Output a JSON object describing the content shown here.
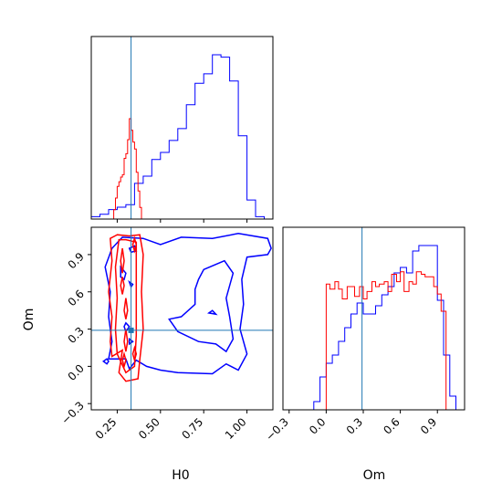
{
  "chart_data": {
    "type": "corner",
    "parameters": [
      "H0",
      "Om"
    ],
    "truth": {
      "H0": 0.33,
      "Om": 0.29
    },
    "colors": {
      "red": "#ff0000",
      "blue": "#0000ff",
      "truth_line": "#1f77b4"
    },
    "axes": {
      "H0": {
        "label": "H0",
        "range": [
          0.1,
          1.15
        ],
        "ticks": [
          0.25,
          0.5,
          0.75,
          1.0
        ],
        "tick_labels": [
          "0.25",
          "0.50",
          "0.75",
          "1.00"
        ]
      },
      "Om": {
        "label": "Om",
        "range": [
          -0.35,
          1.12
        ],
        "ticks": [
          -0.3,
          0.0,
          0.3,
          0.6,
          0.9
        ],
        "tick_labels": [
          "−0.3",
          "0.0",
          "0.3",
          "0.6",
          "0.9"
        ]
      }
    },
    "hist_H0": {
      "red": {
        "edges": [
          0.1,
          0.23,
          0.24,
          0.25,
          0.26,
          0.27,
          0.28,
          0.29,
          0.3,
          0.31,
          0.32,
          0.33,
          0.34,
          0.35,
          0.36,
          0.37,
          0.38,
          0.39,
          1.15
        ],
        "values": [
          0,
          4,
          9,
          14,
          16,
          18,
          19,
          26,
          28,
          34,
          43,
          38,
          33,
          30,
          20,
          12,
          5,
          0
        ]
      },
      "blue": {
        "edges": [
          0.1,
          0.15,
          0.2,
          0.25,
          0.3,
          0.35,
          0.4,
          0.45,
          0.5,
          0.55,
          0.6,
          0.65,
          0.7,
          0.75,
          0.8,
          0.85,
          0.9,
          0.95,
          1.0,
          1.05,
          1.1,
          1.15
        ],
        "values": [
          1,
          2,
          4,
          5,
          6,
          15,
          18,
          25,
          28,
          33,
          38,
          48,
          57,
          61,
          69,
          68,
          58,
          35,
          8,
          1,
          0
        ]
      }
    },
    "hist_Om": {
      "red": {
        "edges": [
          -0.35,
          -0.05,
          0.0,
          0.03,
          0.07,
          0.1,
          0.13,
          0.17,
          0.2,
          0.23,
          0.27,
          0.3,
          0.33,
          0.37,
          0.4,
          0.43,
          0.47,
          0.5,
          0.53,
          0.57,
          0.6,
          0.63,
          0.67,
          0.7,
          0.73,
          0.77,
          0.8,
          0.83,
          0.87,
          0.9,
          0.93,
          0.97,
          1.0,
          1.12
        ],
        "values": [
          0,
          0,
          51,
          49,
          52,
          49,
          45,
          50,
          50,
          46,
          50,
          45,
          48,
          52,
          50,
          51,
          52,
          48,
          55,
          52,
          56,
          48,
          52,
          51,
          56,
          55,
          54,
          54,
          50,
          47,
          40,
          0,
          0
        ]
      },
      "blue": {
        "edges": [
          -0.35,
          -0.1,
          -0.05,
          0.0,
          0.05,
          0.1,
          0.15,
          0.2,
          0.25,
          0.3,
          0.35,
          0.4,
          0.45,
          0.5,
          0.55,
          0.6,
          0.65,
          0.7,
          0.75,
          0.8,
          0.85,
          0.9,
          0.95,
          1.0,
          1.05,
          1.12
        ],
        "values": [
          0,
          3,
          12,
          17,
          20,
          25,
          30,
          35,
          39,
          35,
          35,
          38,
          42,
          45,
          50,
          52,
          50,
          58,
          60,
          60,
          60,
          40,
          20,
          5,
          0
        ]
      }
    },
    "contours_red": [
      [
        [
          0.28,
          0.13
        ],
        [
          0.22,
          0.08
        ],
        [
          0.21,
          0.2
        ],
        [
          0.22,
          0.4
        ],
        [
          0.2,
          0.6
        ],
        [
          0.22,
          0.85
        ],
        [
          0.21,
          1.03
        ],
        [
          0.25,
          1.06
        ],
        [
          0.32,
          1.05
        ],
        [
          0.38,
          1.06
        ],
        [
          0.4,
          0.9
        ],
        [
          0.39,
          0.6
        ],
        [
          0.4,
          0.3
        ],
        [
          0.38,
          0.05
        ],
        [
          0.37,
          -0.1
        ],
        [
          0.3,
          -0.12
        ],
        [
          0.26,
          -0.05
        ],
        [
          0.28,
          0.13
        ]
      ],
      [
        [
          0.25,
          0.1
        ],
        [
          0.24,
          0.3
        ],
        [
          0.25,
          0.55
        ],
        [
          0.24,
          0.8
        ],
        [
          0.26,
          1.02
        ],
        [
          0.3,
          1.02
        ],
        [
          0.36,
          1.0
        ],
        [
          0.36,
          0.75
        ],
        [
          0.36,
          0.5
        ],
        [
          0.36,
          0.25
        ],
        [
          0.35,
          0.0
        ],
        [
          0.3,
          -0.05
        ],
        [
          0.25,
          0.1
        ]
      ],
      [
        [
          0.27,
          0.85
        ],
        [
          0.28,
          0.95
        ],
        [
          0.29,
          0.85
        ],
        [
          0.28,
          0.75
        ],
        [
          0.27,
          0.85
        ]
      ],
      [
        [
          0.27,
          0.65
        ],
        [
          0.28,
          0.72
        ],
        [
          0.29,
          0.65
        ],
        [
          0.28,
          0.58
        ],
        [
          0.27,
          0.65
        ]
      ],
      [
        [
          0.29,
          0.45
        ],
        [
          0.3,
          0.55
        ],
        [
          0.31,
          0.45
        ],
        [
          0.3,
          0.38
        ],
        [
          0.29,
          0.45
        ]
      ],
      [
        [
          0.29,
          0.2
        ],
        [
          0.3,
          0.3
        ],
        [
          0.31,
          0.2
        ],
        [
          0.3,
          0.12
        ],
        [
          0.29,
          0.2
        ]
      ],
      [
        [
          0.34,
          0.98
        ],
        [
          0.35,
          1.03
        ],
        [
          0.36,
          0.98
        ],
        [
          0.35,
          0.93
        ],
        [
          0.34,
          0.98
        ]
      ],
      [
        [
          0.28,
          0.05
        ],
        [
          0.29,
          0.1
        ],
        [
          0.3,
          0.05
        ],
        [
          0.29,
          0.0
        ],
        [
          0.28,
          0.05
        ]
      ],
      [
        [
          0.34,
          0.1
        ],
        [
          0.35,
          0.15
        ],
        [
          0.36,
          0.1
        ],
        [
          0.35,
          0.05
        ],
        [
          0.34,
          0.1
        ]
      ]
    ],
    "contours_blue": [
      [
        [
          0.28,
          1.04
        ],
        [
          0.4,
          1.03
        ],
        [
          0.5,
          0.98
        ],
        [
          0.62,
          1.04
        ],
        [
          0.8,
          1.03
        ],
        [
          0.95,
          1.07
        ],
        [
          1.12,
          1.03
        ],
        [
          1.14,
          0.95
        ],
        [
          1.12,
          0.9
        ],
        [
          1.0,
          0.88
        ],
        [
          0.97,
          0.7
        ],
        [
          0.98,
          0.5
        ],
        [
          0.96,
          0.3
        ],
        [
          1.0,
          0.1
        ],
        [
          0.95,
          -0.03
        ],
        [
          0.88,
          0.02
        ],
        [
          0.8,
          -0.06
        ],
        [
          0.6,
          -0.05
        ],
        [
          0.5,
          -0.03
        ],
        [
          0.42,
          0.0
        ],
        [
          0.36,
          0.05
        ],
        [
          0.32,
          -0.02
        ],
        [
          0.3,
          0.06
        ],
        [
          0.2,
          0.06
        ],
        [
          0.22,
          0.2
        ],
        [
          0.2,
          0.4
        ],
        [
          0.21,
          0.6
        ],
        [
          0.18,
          0.8
        ],
        [
          0.22,
          0.95
        ],
        [
          0.28,
          1.04
        ]
      ],
      [
        [
          0.75,
          0.78
        ],
        [
          0.87,
          0.85
        ],
        [
          0.92,
          0.75
        ],
        [
          0.88,
          0.55
        ],
        [
          0.9,
          0.4
        ],
        [
          0.92,
          0.22
        ],
        [
          0.88,
          0.12
        ],
        [
          0.82,
          0.18
        ],
        [
          0.72,
          0.2
        ],
        [
          0.6,
          0.28
        ],
        [
          0.55,
          0.38
        ],
        [
          0.62,
          0.4
        ],
        [
          0.7,
          0.5
        ],
        [
          0.7,
          0.62
        ],
        [
          0.72,
          0.7
        ],
        [
          0.75,
          0.78
        ]
      ],
      [
        [
          0.27,
          0.8
        ],
        [
          0.3,
          0.75
        ],
        [
          0.29,
          0.7
        ],
        [
          0.27,
          0.72
        ],
        [
          0.27,
          0.8
        ]
      ],
      [
        [
          0.32,
          0.68
        ],
        [
          0.34,
          0.66
        ],
        [
          0.33,
          0.64
        ],
        [
          0.32,
          0.68
        ]
      ],
      [
        [
          0.3,
          0.35
        ],
        [
          0.32,
          0.32
        ],
        [
          0.3,
          0.28
        ],
        [
          0.29,
          0.32
        ],
        [
          0.3,
          0.35
        ]
      ],
      [
        [
          0.32,
          0.22
        ],
        [
          0.34,
          0.2
        ],
        [
          0.32,
          0.18
        ],
        [
          0.32,
          0.22
        ]
      ],
      [
        [
          0.17,
          0.04
        ],
        [
          0.19,
          0.06
        ],
        [
          0.2,
          0.04
        ],
        [
          0.19,
          0.02
        ],
        [
          0.17,
          0.04
        ]
      ],
      [
        [
          0.32,
          0.95
        ],
        [
          0.35,
          0.97
        ],
        [
          0.36,
          0.93
        ],
        [
          0.33,
          0.92
        ],
        [
          0.32,
          0.95
        ]
      ],
      [
        [
          0.78,
          0.43
        ],
        [
          0.8,
          0.45
        ],
        [
          0.82,
          0.42
        ],
        [
          0.78,
          0.43
        ]
      ]
    ]
  }
}
